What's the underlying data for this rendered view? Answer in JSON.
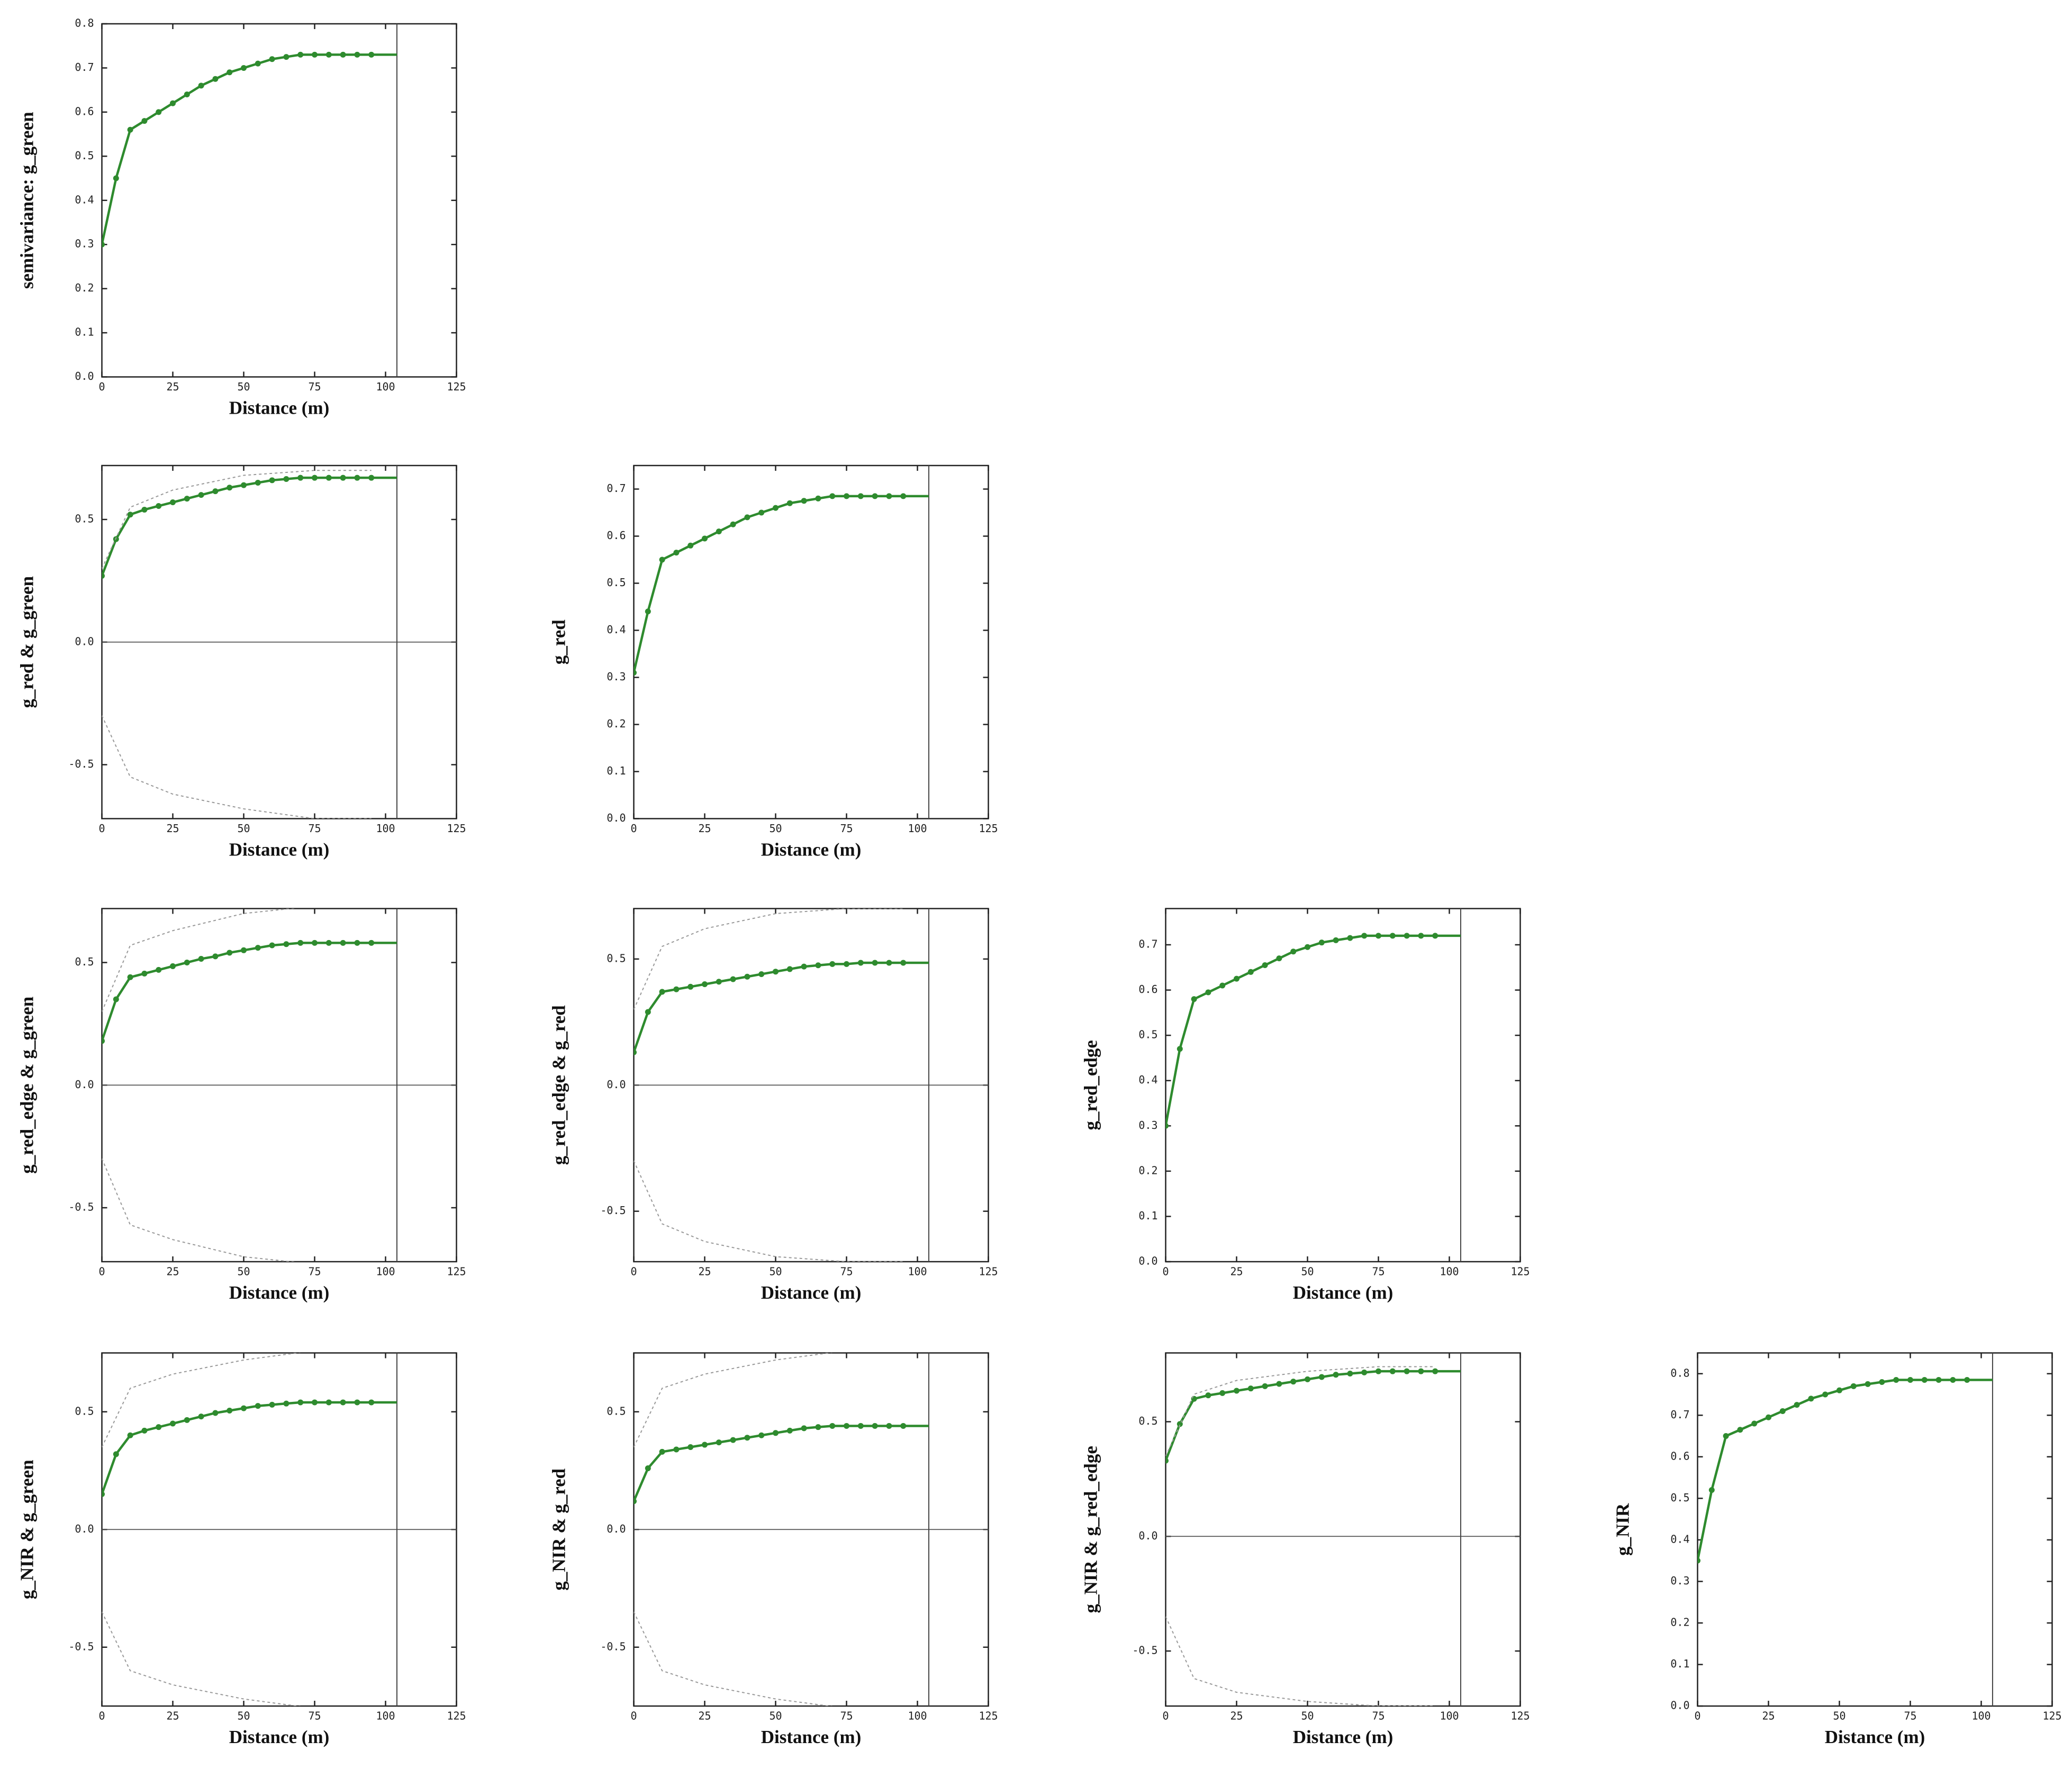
{
  "chart_data": [
    {
      "type": "line",
      "ylabel": "semivariance: g_green",
      "xlabel": "Distance (m)",
      "x": [
        0,
        5,
        10,
        15,
        20,
        25,
        30,
        35,
        40,
        45,
        50,
        55,
        60,
        65,
        70,
        75,
        80,
        85,
        90,
        95
      ],
      "xlim": [
        0,
        125
      ],
      "xticks": [
        0,
        25,
        50,
        75,
        100,
        125
      ],
      "ylim": [
        0,
        0.8
      ],
      "yticks": [
        {
          "value": 0,
          "label": "0.0"
        },
        0.1,
        0.2,
        0.3,
        0.4,
        0.5,
        0.6,
        0.7,
        0.8
      ],
      "vline": 104,
      "series": [
        {
          "color": "#2e8b2e",
          "values": [
            0.3,
            0.45,
            0.56,
            0.58,
            0.6,
            0.62,
            0.64,
            0.66,
            0.675,
            0.69,
            0.7,
            0.71,
            0.72,
            0.725,
            0.73,
            0.73,
            0.73,
            0.73,
            0.73,
            0.73
          ]
        }
      ]
    },
    {
      "type": "line",
      "ylabel": "g_red & g_green",
      "xlabel": "Distance (m)",
      "x": [
        0,
        5,
        10,
        15,
        20,
        25,
        30,
        35,
        40,
        45,
        50,
        55,
        60,
        65,
        70,
        75,
        80,
        85,
        90,
        95
      ],
      "xlim": [
        0,
        125
      ],
      "xticks": [
        0,
        25,
        50,
        75,
        100,
        125
      ],
      "ylim": [
        -0.72,
        0.72
      ],
      "yticks": [
        -0.5,
        {
          "value": 0,
          "label": "0.0"
        },
        0.5
      ],
      "vline": 104,
      "zero_line": true,
      "series": [
        {
          "color": "#2e8b2e",
          "values": [
            0.27,
            0.42,
            0.52,
            0.54,
            0.555,
            0.57,
            0.585,
            0.6,
            0.615,
            0.63,
            0.64,
            0.65,
            0.66,
            0.665,
            0.67,
            0.67,
            0.67,
            0.67,
            0.67,
            0.67
          ]
        },
        {
          "color": "#999999",
          "dashed": true,
          "x": [
            0,
            10,
            25,
            50,
            75,
            95
          ],
          "values": [
            0.3,
            0.55,
            0.62,
            0.68,
            0.7,
            0.7
          ]
        },
        {
          "color": "#999999",
          "dashed": true,
          "x": [
            0,
            10,
            25,
            50,
            75,
            95
          ],
          "values": [
            -0.3,
            -0.55,
            -0.62,
            -0.68,
            -0.72,
            -0.72
          ]
        }
      ]
    },
    {
      "type": "line",
      "ylabel": "g_red",
      "xlabel": "Distance (m)",
      "x": [
        0,
        5,
        10,
        15,
        20,
        25,
        30,
        35,
        40,
        45,
        50,
        55,
        60,
        65,
        70,
        75,
        80,
        85,
        90,
        95
      ],
      "xlim": [
        0,
        125
      ],
      "xticks": [
        0,
        25,
        50,
        75,
        100,
        125
      ],
      "ylim": [
        0,
        0.75
      ],
      "yticks": [
        {
          "value": 0,
          "label": "0.0"
        },
        0.1,
        0.2,
        0.3,
        0.4,
        0.5,
        0.6,
        0.7
      ],
      "vline": 104,
      "series": [
        {
          "color": "#2e8b2e",
          "values": [
            0.31,
            0.44,
            0.55,
            0.565,
            0.58,
            0.595,
            0.61,
            0.625,
            0.64,
            0.65,
            0.66,
            0.67,
            0.675,
            0.68,
            0.685,
            0.685,
            0.685,
            0.685,
            0.685,
            0.685
          ]
        }
      ]
    },
    {
      "type": "line",
      "ylabel": "g_red_edge & g_green",
      "xlabel": "Distance (m)",
      "x": [
        0,
        5,
        10,
        15,
        20,
        25,
        30,
        35,
        40,
        45,
        50,
        55,
        60,
        65,
        70,
        75,
        80,
        85,
        90,
        95
      ],
      "xlim": [
        0,
        125
      ],
      "xticks": [
        0,
        25,
        50,
        75,
        100,
        125
      ],
      "ylim": [
        -0.72,
        0.72
      ],
      "yticks": [
        -0.5,
        {
          "value": 0,
          "label": "0.0"
        },
        0.5
      ],
      "vline": 104,
      "zero_line": true,
      "series": [
        {
          "color": "#2e8b2e",
          "values": [
            0.18,
            0.35,
            0.44,
            0.455,
            0.47,
            0.485,
            0.5,
            0.515,
            0.525,
            0.54,
            0.55,
            0.56,
            0.57,
            0.575,
            0.58,
            0.58,
            0.58,
            0.58,
            0.58,
            0.58
          ]
        },
        {
          "color": "#999999",
          "dashed": true,
          "x": [
            0,
            10,
            25,
            50,
            75,
            95
          ],
          "values": [
            0.3,
            0.57,
            0.63,
            0.7,
            0.73,
            0.73
          ]
        },
        {
          "color": "#999999",
          "dashed": true,
          "x": [
            0,
            10,
            25,
            50,
            75,
            95
          ],
          "values": [
            -0.3,
            -0.57,
            -0.63,
            -0.7,
            -0.73,
            -0.73
          ]
        }
      ]
    },
    {
      "type": "line",
      "ylabel": "g_red_edge & g_red",
      "xlabel": "Distance (m)",
      "x": [
        0,
        5,
        10,
        15,
        20,
        25,
        30,
        35,
        40,
        45,
        50,
        55,
        60,
        65,
        70,
        75,
        80,
        85,
        90,
        95
      ],
      "xlim": [
        0,
        125
      ],
      "xticks": [
        0,
        25,
        50,
        75,
        100,
        125
      ],
      "ylim": [
        -0.7,
        0.7
      ],
      "yticks": [
        -0.5,
        {
          "value": 0,
          "label": "0.0"
        },
        0.5
      ],
      "vline": 104,
      "zero_line": true,
      "series": [
        {
          "color": "#2e8b2e",
          "values": [
            0.13,
            0.29,
            0.37,
            0.38,
            0.39,
            0.4,
            0.41,
            0.42,
            0.43,
            0.44,
            0.45,
            0.46,
            0.47,
            0.475,
            0.48,
            0.48,
            0.485,
            0.485,
            0.485,
            0.485
          ]
        },
        {
          "color": "#999999",
          "dashed": true,
          "x": [
            0,
            10,
            25,
            50,
            75,
            95
          ],
          "values": [
            0.3,
            0.55,
            0.62,
            0.68,
            0.7,
            0.7
          ]
        },
        {
          "color": "#999999",
          "dashed": true,
          "x": [
            0,
            10,
            25,
            50,
            75,
            95
          ],
          "values": [
            -0.3,
            -0.55,
            -0.62,
            -0.68,
            -0.7,
            -0.7
          ]
        }
      ]
    },
    {
      "type": "line",
      "ylabel": "g_red_edge",
      "xlabel": "Distance (m)",
      "x": [
        0,
        5,
        10,
        15,
        20,
        25,
        30,
        35,
        40,
        45,
        50,
        55,
        60,
        65,
        70,
        75,
        80,
        85,
        90,
        95
      ],
      "xlim": [
        0,
        125
      ],
      "xticks": [
        0,
        25,
        50,
        75,
        100,
        125
      ],
      "ylim": [
        0,
        0.78
      ],
      "yticks": [
        {
          "value": 0,
          "label": "0.0"
        },
        0.1,
        0.2,
        0.3,
        0.4,
        0.5,
        0.6,
        0.7
      ],
      "vline": 104,
      "series": [
        {
          "color": "#2e8b2e",
          "values": [
            0.3,
            0.47,
            0.58,
            0.595,
            0.61,
            0.625,
            0.64,
            0.655,
            0.67,
            0.685,
            0.695,
            0.705,
            0.71,
            0.715,
            0.72,
            0.72,
            0.72,
            0.72,
            0.72,
            0.72
          ]
        }
      ]
    },
    {
      "type": "line",
      "ylabel": "g_NIR & g_green",
      "xlabel": "Distance (m)",
      "x": [
        0,
        5,
        10,
        15,
        20,
        25,
        30,
        35,
        40,
        45,
        50,
        55,
        60,
        65,
        70,
        75,
        80,
        85,
        90,
        95
      ],
      "xlim": [
        0,
        125
      ],
      "xticks": [
        0,
        25,
        50,
        75,
        100,
        125
      ],
      "ylim": [
        -0.75,
        0.75
      ],
      "yticks": [
        -0.5,
        {
          "value": 0,
          "label": "0.0"
        },
        0.5
      ],
      "vline": 104,
      "zero_line": true,
      "series": [
        {
          "color": "#2e8b2e",
          "values": [
            0.15,
            0.32,
            0.4,
            0.42,
            0.435,
            0.45,
            0.465,
            0.48,
            0.495,
            0.505,
            0.515,
            0.525,
            0.53,
            0.535,
            0.54,
            0.54,
            0.54,
            0.54,
            0.54,
            0.54
          ]
        },
        {
          "color": "#999999",
          "dashed": true,
          "x": [
            0,
            10,
            25,
            50,
            75,
            95
          ],
          "values": [
            0.35,
            0.6,
            0.66,
            0.72,
            0.76,
            0.76
          ]
        },
        {
          "color": "#999999",
          "dashed": true,
          "x": [
            0,
            10,
            25,
            50,
            75,
            95
          ],
          "values": [
            -0.35,
            -0.6,
            -0.66,
            -0.72,
            -0.76,
            -0.76
          ]
        }
      ]
    },
    {
      "type": "line",
      "ylabel": "g_NIR & g_red",
      "xlabel": "Distance (m)",
      "x": [
        0,
        5,
        10,
        15,
        20,
        25,
        30,
        35,
        40,
        45,
        50,
        55,
        60,
        65,
        70,
        75,
        80,
        85,
        90,
        95
      ],
      "xlim": [
        0,
        125
      ],
      "xticks": [
        0,
        25,
        50,
        75,
        100,
        125
      ],
      "ylim": [
        -0.75,
        0.75
      ],
      "yticks": [
        -0.5,
        {
          "value": 0,
          "label": "0.0"
        },
        0.5
      ],
      "vline": 104,
      "zero_line": true,
      "series": [
        {
          "color": "#2e8b2e",
          "values": [
            0.12,
            0.26,
            0.33,
            0.34,
            0.35,
            0.36,
            0.37,
            0.38,
            0.39,
            0.4,
            0.41,
            0.42,
            0.43,
            0.435,
            0.44,
            0.44,
            0.44,
            0.44,
            0.44,
            0.44
          ]
        },
        {
          "color": "#999999",
          "dashed": true,
          "x": [
            0,
            10,
            25,
            50,
            75,
            95
          ],
          "values": [
            0.35,
            0.6,
            0.66,
            0.72,
            0.76,
            0.76
          ]
        },
        {
          "color": "#999999",
          "dashed": true,
          "x": [
            0,
            10,
            25,
            50,
            75,
            95
          ],
          "values": [
            -0.35,
            -0.6,
            -0.66,
            -0.72,
            -0.76,
            -0.76
          ]
        }
      ]
    },
    {
      "type": "line",
      "ylabel": "g_NIR & g_red_edge",
      "xlabel": "Distance (m)",
      "x": [
        0,
        5,
        10,
        15,
        20,
        25,
        30,
        35,
        40,
        45,
        50,
        55,
        60,
        65,
        70,
        75,
        80,
        85,
        90,
        95
      ],
      "xlim": [
        0,
        125
      ],
      "xticks": [
        0,
        25,
        50,
        75,
        100,
        125
      ],
      "ylim": [
        -0.74,
        0.8
      ],
      "yticks": [
        -0.5,
        {
          "value": 0,
          "label": "0.0"
        },
        0.5
      ],
      "vline": 104,
      "zero_line": true,
      "series": [
        {
          "color": "#2e8b2e",
          "values": [
            0.33,
            0.49,
            0.6,
            0.615,
            0.625,
            0.635,
            0.645,
            0.655,
            0.665,
            0.675,
            0.685,
            0.695,
            0.705,
            0.71,
            0.715,
            0.72,
            0.72,
            0.72,
            0.72,
            0.72
          ]
        },
        {
          "color": "#999999",
          "dashed": true,
          "x": [
            0,
            10,
            25,
            50,
            75,
            95
          ],
          "values": [
            0.35,
            0.62,
            0.68,
            0.72,
            0.74,
            0.74
          ]
        },
        {
          "color": "#999999",
          "dashed": true,
          "x": [
            0,
            10,
            25,
            50,
            75,
            95
          ],
          "values": [
            -0.35,
            -0.62,
            -0.68,
            -0.72,
            -0.74,
            -0.74
          ]
        }
      ]
    },
    {
      "type": "line",
      "ylabel": "g_NIR",
      "xlabel": "Distance (m)",
      "x": [
        0,
        5,
        10,
        15,
        20,
        25,
        30,
        35,
        40,
        45,
        50,
        55,
        60,
        65,
        70,
        75,
        80,
        85,
        90,
        95
      ],
      "xlim": [
        0,
        125
      ],
      "xticks": [
        0,
        25,
        50,
        75,
        100,
        125
      ],
      "ylim": [
        0,
        0.85
      ],
      "yticks": [
        {
          "value": 0,
          "label": "0.0"
        },
        0.1,
        0.2,
        0.3,
        0.4,
        0.5,
        0.6,
        0.7,
        0.8
      ],
      "vline": 104,
      "series": [
        {
          "color": "#2e8b2e",
          "values": [
            0.35,
            0.52,
            0.65,
            0.665,
            0.68,
            0.695,
            0.71,
            0.725,
            0.74,
            0.75,
            0.76,
            0.77,
            0.775,
            0.78,
            0.785,
            0.785,
            0.785,
            0.785,
            0.785,
            0.785
          ]
        }
      ]
    }
  ]
}
